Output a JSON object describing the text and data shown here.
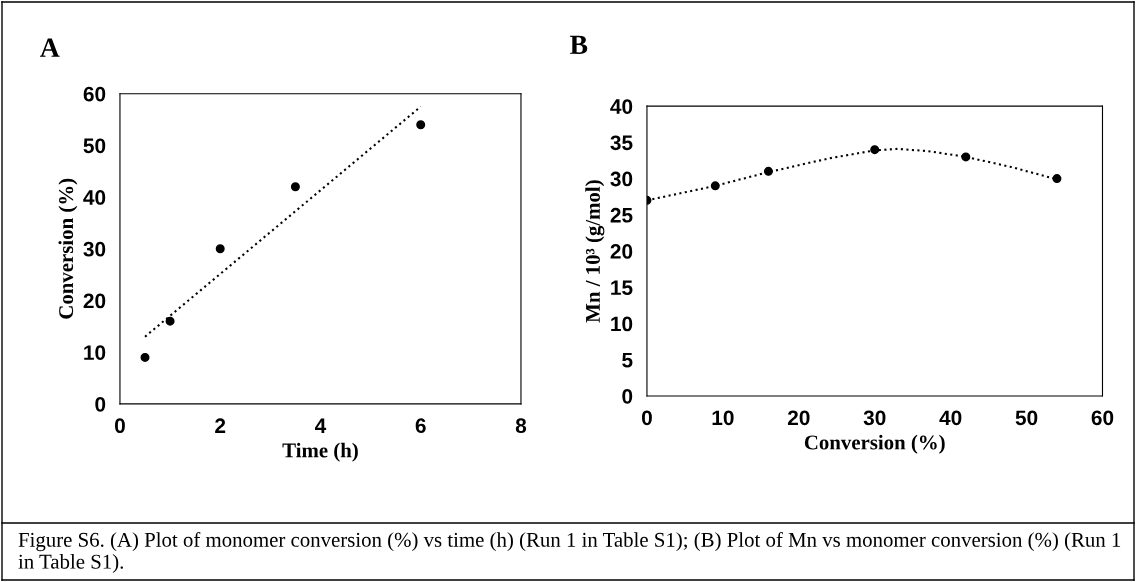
{
  "chart_data": [
    {
      "type": "scatter",
      "title": "A",
      "xlabel": "Time (h)",
      "ylabel": "Conversion (%)",
      "xlim": [
        0,
        8
      ],
      "xticks": [
        0,
        2,
        4,
        6,
        8
      ],
      "ylim": [
        0,
        60
      ],
      "yticks": [
        0,
        10,
        20,
        30,
        40,
        50,
        60
      ],
      "grid": false,
      "legend": false,
      "marker": "circle",
      "series": [
        {
          "color": "#000000",
          "x": [
            0.5,
            1,
            2,
            3.5,
            6
          ],
          "values": [
            9,
            16,
            30,
            42,
            54
          ]
        },
        {
          "type": "line",
          "color": "#000000",
          "line_style": "dotted",
          "marker": "none",
          "x": [
            0.5,
            6
          ],
          "values": [
            13,
            57.5
          ]
        }
      ]
    },
    {
      "type": "scatter",
      "title": "B",
      "xlabel": "Conversion (%)",
      "ylabel": "Mn / 10³ (g/mol)",
      "xlim": [
        0,
        60
      ],
      "xticks": [
        0,
        10,
        20,
        30,
        40,
        50,
        60
      ],
      "ylim": [
        0,
        40
      ],
      "yticks": [
        0,
        5,
        10,
        15,
        20,
        25,
        30,
        35,
        40
      ],
      "grid": false,
      "legend": false,
      "marker": "circle",
      "annotations": [
        "Figure S6. (A) Plot of monomer conversion (%) vs time (h) (Run 1 in Table S1); (B) Plot of Mn vs monomer conversion (%) (Run 1 in Table S1)."
      ],
      "series": [
        {
          "color": "#000000",
          "x": [
            0,
            9,
            16,
            30,
            42,
            54
          ],
          "values": [
            27,
            29,
            31,
            34,
            33,
            30
          ]
        },
        {
          "type": "line",
          "color": "#000000",
          "line_style": "dotted",
          "marker": "none",
          "x": [
            0,
            9,
            16,
            24,
            30,
            33,
            37,
            42,
            48,
            54
          ],
          "values": [
            27,
            29,
            30.9,
            32.8,
            33.9,
            34.1,
            33.8,
            33,
            31.6,
            29.9
          ]
        }
      ]
    }
  ]
}
